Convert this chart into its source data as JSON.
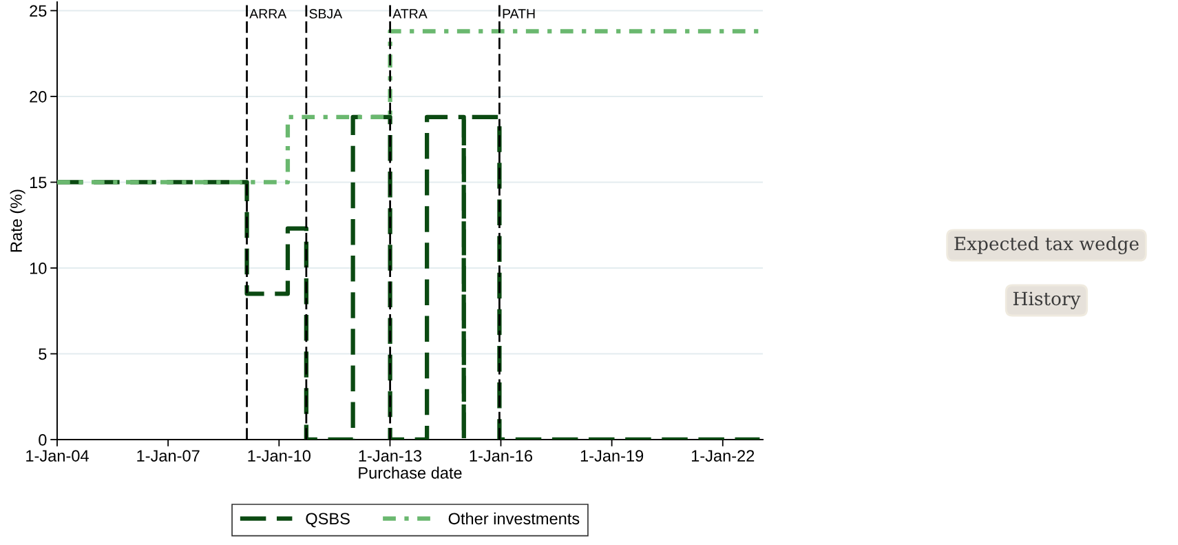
{
  "chart_data": {
    "type": "step",
    "xlabel": "Purchase date",
    "ylabel": "Rate (%)",
    "series": [
      {
        "name": "QSBS",
        "color": "#0b4a12",
        "line_style": "dashed",
        "x": [
          "2004-01-01",
          "2009-02-17",
          "2010-03-28",
          "2010-09-27",
          "2012-01-01",
          "2013-01-02",
          "2014-01-01",
          "2014-12-31",
          "2015-01-01",
          "2015-12-18",
          "2023-01-01"
        ],
        "values": [
          15,
          8.5,
          12.3,
          0,
          18.8,
          0,
          18.8,
          0,
          18.8,
          0,
          0
        ]
      },
      {
        "name": "Other investments",
        "color": "#6ab86f",
        "line_style": "dotted",
        "x": [
          "2004-01-01",
          "2010-03-28",
          "2013-01-02",
          "2023-01-01"
        ],
        "values": [
          15,
          18.8,
          23.8,
          23.8
        ]
      }
    ],
    "xlim": [
      "2004-01-01",
      "2023-02-01"
    ],
    "xticks": [
      {
        "value": "2004-01-01",
        "label": "1-Jan-04"
      },
      {
        "value": "2007-01-01",
        "label": "1-Jan-07"
      },
      {
        "value": "2010-01-01",
        "label": "1-Jan-10"
      },
      {
        "value": "2013-01-01",
        "label": "1-Jan-13"
      },
      {
        "value": "2016-01-01",
        "label": "1-Jan-16"
      },
      {
        "value": "2019-01-01",
        "label": "1-Jan-19"
      },
      {
        "value": "2022-01-01",
        "label": "1-Jan-22"
      }
    ],
    "ylim": [
      0,
      25.5
    ],
    "yticks": [
      0,
      5,
      10,
      15,
      20,
      25
    ],
    "ref_lines": [
      {
        "axis": "x",
        "value": "2009-02-17",
        "label": "ARRA",
        "color": "#000000",
        "line_style": "dashed"
      },
      {
        "axis": "x",
        "value": "2010-09-27",
        "label": "SBJA",
        "color": "#000000",
        "line_style": "dashed"
      },
      {
        "axis": "x",
        "value": "2013-01-02",
        "label": "ATRA",
        "color": "#000000",
        "line_style": "dashed"
      },
      {
        "axis": "x",
        "value": "2015-12-18",
        "label": "PATH",
        "color": "#000000",
        "line_style": "dashed"
      }
    ],
    "annotations": [
      "Expected tax wedge",
      "History"
    ],
    "grid": "y",
    "legend": "bottom"
  }
}
